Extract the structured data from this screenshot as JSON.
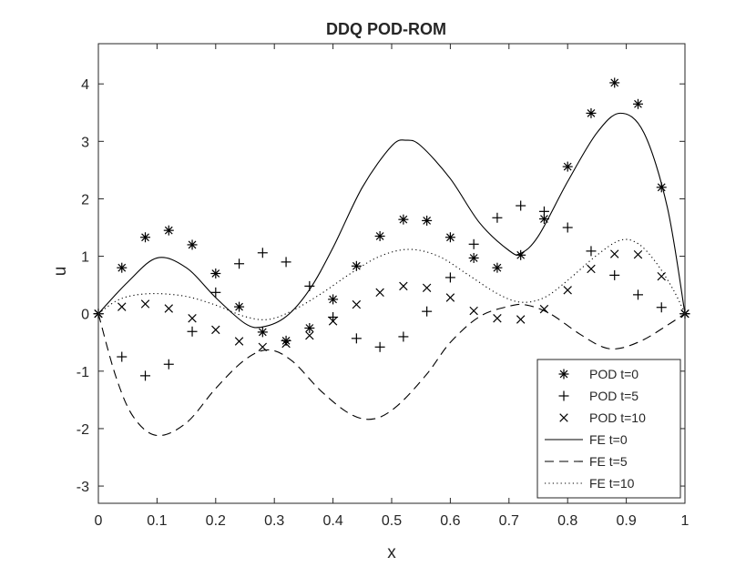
{
  "chart_data": {
    "type": "line",
    "title": "DDQ POD-ROM",
    "xlabel": "x",
    "ylabel": "u",
    "xlim": [
      0,
      1
    ],
    "ylim": [
      -3.3,
      4.7
    ],
    "xticks": [
      0,
      0.1,
      0.2,
      0.3,
      0.4,
      0.5,
      0.6,
      0.7,
      0.8,
      0.9,
      1
    ],
    "xtick_labels": [
      "0",
      "0.1",
      "0.2",
      "0.3",
      "0.4",
      "0.5",
      "0.6",
      "0.7",
      "0.8",
      "0.9",
      "1"
    ],
    "yticks": [
      -3,
      -2,
      -1,
      0,
      1,
      2,
      3,
      4
    ],
    "ytick_labels": [
      "-3",
      "-2",
      "-1",
      "0",
      "1",
      "2",
      "3",
      "4"
    ],
    "grid": false,
    "legend_position": "bottom-right",
    "series": [
      {
        "name": "POD t=0",
        "style": "markers",
        "marker": "asterisk",
        "x": [
          0,
          0.04,
          0.08,
          0.12,
          0.16,
          0.2,
          0.24,
          0.28,
          0.32,
          0.36,
          0.4,
          0.44,
          0.48,
          0.52,
          0.56,
          0.6,
          0.64,
          0.68,
          0.72,
          0.76,
          0.8,
          0.84,
          0.88,
          0.92,
          0.96,
          1
        ],
        "y": [
          0,
          0.8,
          1.33,
          1.45,
          1.2,
          0.7,
          0.12,
          -0.32,
          -0.47,
          -0.25,
          0.25,
          0.83,
          1.35,
          1.64,
          1.62,
          1.33,
          0.97,
          0.8,
          1.02,
          1.65,
          2.56,
          3.49,
          4.02,
          3.65,
          2.2,
          0
        ]
      },
      {
        "name": "POD t=5",
        "style": "markers",
        "marker": "plus",
        "x": [
          0,
          0.04,
          0.08,
          0.12,
          0.16,
          0.2,
          0.24,
          0.28,
          0.32,
          0.36,
          0.4,
          0.44,
          0.48,
          0.52,
          0.56,
          0.6,
          0.64,
          0.68,
          0.72,
          0.76,
          0.8,
          0.84,
          0.88,
          0.92,
          0.96,
          1
        ],
        "y": [
          0,
          -0.75,
          -1.08,
          -0.88,
          -0.31,
          0.37,
          0.87,
          1.06,
          0.9,
          0.48,
          -0.06,
          -0.43,
          -0.58,
          -0.4,
          0.04,
          0.63,
          1.21,
          1.67,
          1.88,
          1.78,
          1.5,
          1.09,
          0.67,
          0.33,
          0.11,
          0
        ]
      },
      {
        "name": "POD t=10",
        "style": "markers",
        "marker": "cross",
        "x": [
          0,
          0.04,
          0.08,
          0.12,
          0.16,
          0.2,
          0.24,
          0.28,
          0.32,
          0.36,
          0.4,
          0.44,
          0.48,
          0.52,
          0.56,
          0.6,
          0.64,
          0.68,
          0.72,
          0.76,
          0.8,
          0.84,
          0.88,
          0.92,
          0.96,
          1
        ],
        "y": [
          0,
          0.12,
          0.17,
          0.09,
          -0.08,
          -0.28,
          -0.48,
          -0.58,
          -0.52,
          -0.38,
          -0.13,
          0.16,
          0.37,
          0.48,
          0.45,
          0.28,
          0.05,
          -0.08,
          -0.1,
          0.08,
          0.41,
          0.78,
          1.04,
          1.03,
          0.65,
          0
        ]
      },
      {
        "name": "FE t=0",
        "style": "solid",
        "x": [
          0,
          0.05,
          0.1,
          0.15,
          0.2,
          0.25,
          0.28,
          0.32,
          0.36,
          0.4,
          0.45,
          0.5,
          0.525,
          0.55,
          0.6,
          0.65,
          0.7,
          0.72,
          0.75,
          0.8,
          0.85,
          0.89,
          0.93,
          0.97,
          1
        ],
        "y": [
          0,
          0.55,
          0.97,
          0.8,
          0.28,
          -0.17,
          -0.23,
          -0.05,
          0.42,
          1.15,
          2.2,
          2.92,
          3.02,
          2.92,
          2.35,
          1.58,
          1.1,
          1.05,
          1.35,
          2.3,
          3.15,
          3.49,
          3.15,
          1.85,
          0
        ]
      },
      {
        "name": "FE t=5",
        "style": "dashed",
        "x": [
          0,
          0.03,
          0.06,
          0.1,
          0.15,
          0.2,
          0.25,
          0.29,
          0.33,
          0.38,
          0.43,
          0.47,
          0.51,
          0.56,
          0.6,
          0.65,
          0.7,
          0.73,
          0.77,
          0.82,
          0.86,
          0.89,
          0.93,
          0.97,
          1
        ],
        "y": [
          0,
          -1.1,
          -1.8,
          -2.12,
          -1.9,
          -1.3,
          -0.8,
          -0.63,
          -0.82,
          -1.35,
          -1.75,
          -1.83,
          -1.6,
          -1.05,
          -0.5,
          -0.05,
          0.13,
          0.15,
          0.0,
          -0.35,
          -0.58,
          -0.6,
          -0.45,
          -0.2,
          0
        ]
      },
      {
        "name": "FE t=10",
        "style": "dotted",
        "x": [
          0,
          0.03,
          0.06,
          0.1,
          0.15,
          0.2,
          0.25,
          0.29,
          0.33,
          0.38,
          0.43,
          0.48,
          0.53,
          0.58,
          0.63,
          0.68,
          0.72,
          0.76,
          0.8,
          0.85,
          0.89,
          0.92,
          0.95,
          0.98,
          1
        ],
        "y": [
          0,
          0.22,
          0.32,
          0.35,
          0.3,
          0.15,
          -0.05,
          -0.1,
          0.05,
          0.35,
          0.7,
          1.0,
          1.12,
          1.0,
          0.68,
          0.35,
          0.2,
          0.28,
          0.58,
          1.02,
          1.28,
          1.22,
          0.9,
          0.42,
          0
        ]
      }
    ]
  }
}
